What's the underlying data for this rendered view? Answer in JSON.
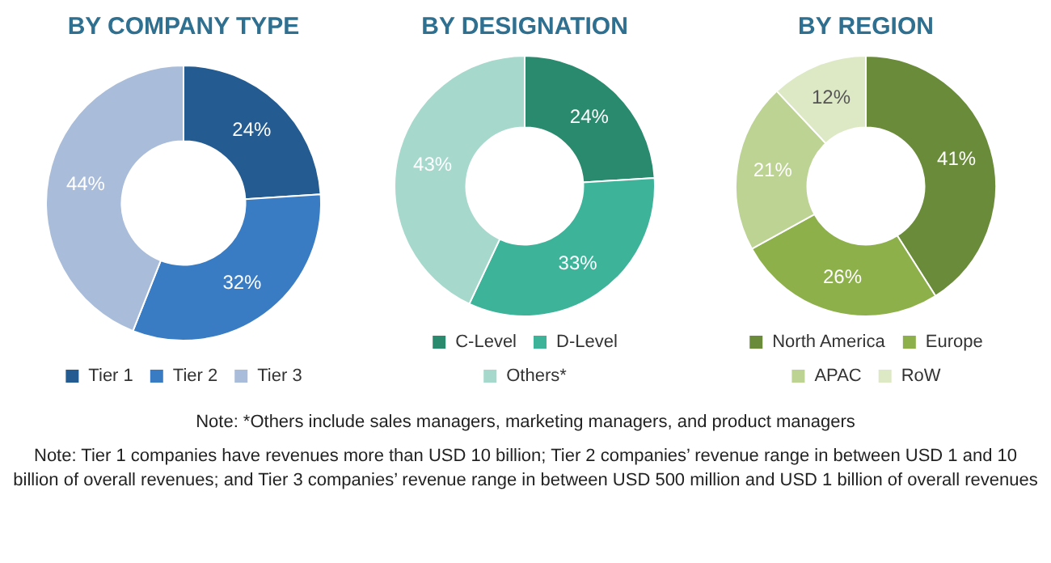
{
  "chart_data": [
    {
      "type": "donut",
      "title": "BY COMPANY TYPE",
      "categories": [
        "Tier 1",
        "Tier 2",
        "Tier 3"
      ],
      "values": [
        24,
        32,
        44
      ],
      "value_labels": [
        "24%",
        "32%",
        "44%"
      ],
      "colors": [
        "#245b91",
        "#3a7cc4",
        "#a9bcd9"
      ],
      "legend": "bottom",
      "annotations": [
        "Note: Tier 1 companies have revenues more than USD 10 billion; Tier 2 companies’ revenue range in between USD 1 and 10 billion of overall revenues; and Tier 3 companies’ revenue range in between USD 500 million and USD 1 billion of overall revenues"
      ]
    },
    {
      "type": "donut",
      "title": "BY DESIGNATION",
      "categories": [
        "C-Level",
        "D-Level",
        "Others*"
      ],
      "values": [
        24,
        33,
        43
      ],
      "value_labels": [
        "24%",
        "33%",
        "43%"
      ],
      "colors": [
        "#2a8a6e",
        "#3db39a",
        "#a6d8cc"
      ],
      "legend": "bottom",
      "annotations": [
        "Note: *Others include sales managers, marketing managers, and product managers"
      ]
    },
    {
      "type": "donut",
      "title": "BY REGION",
      "categories": [
        "North America",
        "Europe",
        "APAC",
        "RoW"
      ],
      "values": [
        41,
        26,
        21,
        12
      ],
      "value_labels": [
        "41%",
        "26%",
        "21%",
        "12%"
      ],
      "colors": [
        "#6a8c3a",
        "#8db04a",
        "#bcd393",
        "#dde8c5"
      ],
      "legend": "bottom"
    }
  ]
}
